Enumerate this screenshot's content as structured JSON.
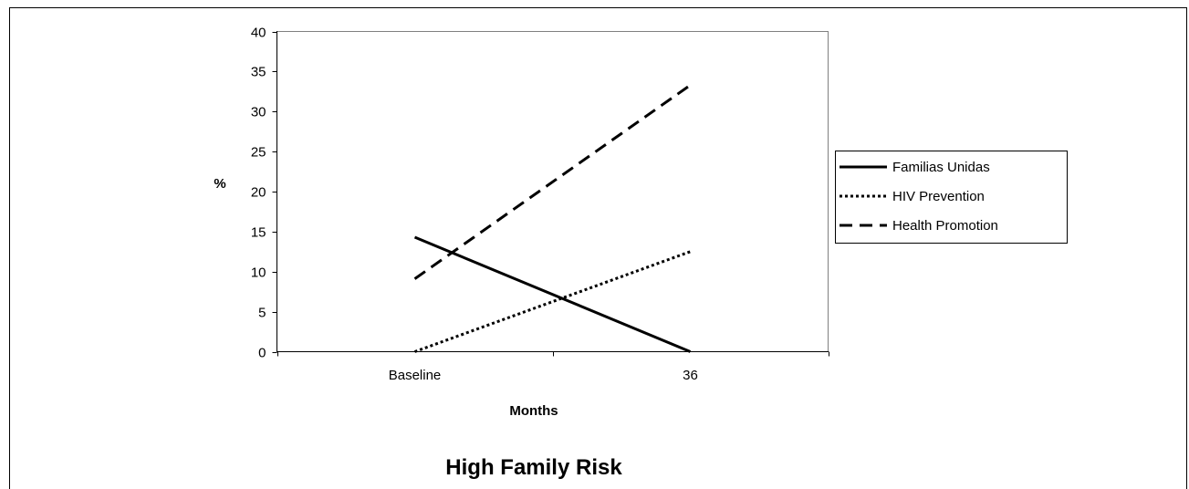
{
  "chart_data": {
    "type": "line",
    "title": "High Family Risk",
    "xlabel": "Months",
    "ylabel": "%",
    "categories": [
      "Baseline",
      "36"
    ],
    "ylim": [
      0,
      40
    ],
    "ytick_step": 5,
    "y_ticks": [
      "0",
      "5",
      "10",
      "15",
      "20",
      "25",
      "30",
      "35",
      "40"
    ],
    "grid": false,
    "legend_position": "right",
    "series": [
      {
        "name": "Familias Unidas",
        "values": [
          14.3,
          0
        ],
        "line_style": "solid",
        "color": "#000000"
      },
      {
        "name": "HIV Prevention",
        "values": [
          0,
          12.5
        ],
        "line_style": "dotted",
        "color": "#000000"
      },
      {
        "name": "Health Promotion",
        "values": [
          9.1,
          33.3
        ],
        "line_style": "dashed",
        "color": "#000000"
      }
    ]
  }
}
